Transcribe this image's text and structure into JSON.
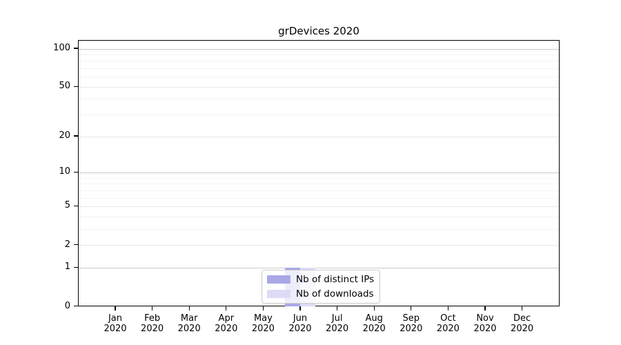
{
  "title": "grDevices 2020",
  "chart_data": {
    "type": "bar",
    "title": "grDevices 2020",
    "categories": [
      "Jan 2020",
      "Feb 2020",
      "Mar 2020",
      "Apr 2020",
      "May 2020",
      "Jun 2020",
      "Jul 2020",
      "Aug 2020",
      "Sep 2020",
      "Oct 2020",
      "Nov 2020",
      "Dec 2020"
    ],
    "series": [
      {
        "name": "Nb of distinct IPs",
        "color": "#a8a8e6",
        "values": [
          0,
          0,
          0,
          0,
          0,
          1,
          0,
          0,
          0,
          0,
          0,
          0
        ]
      },
      {
        "name": "Nb of downloads",
        "color": "#dcdcf7",
        "values": [
          0,
          0,
          0,
          0,
          0,
          1,
          0,
          0,
          0,
          0,
          0,
          0
        ]
      }
    ],
    "yscale": "log1p",
    "ylim": [
      0,
      117
    ],
    "ytick_values": [
      0,
      1,
      2,
      5,
      10,
      20,
      50,
      100
    ],
    "ytick_labels": [
      "0",
      "1",
      "2",
      "5",
      "10",
      "20",
      "50",
      "100"
    ],
    "ygrid_major_values": [
      1,
      10,
      100
    ],
    "ygrid_mid_values": [
      2,
      5,
      20,
      50
    ],
    "ygrid_minor_values": [
      3,
      4,
      6,
      7,
      8,
      9,
      30,
      40,
      60,
      70,
      80,
      90
    ],
    "grid": true,
    "legend_position": "lower center",
    "colors": {
      "grid_major": "#c9c9c9",
      "grid_mid": "#e7e7e7",
      "grid_minor": "#f4f4f4",
      "axis": "#000000",
      "legend_border": "#cccccc"
    }
  }
}
